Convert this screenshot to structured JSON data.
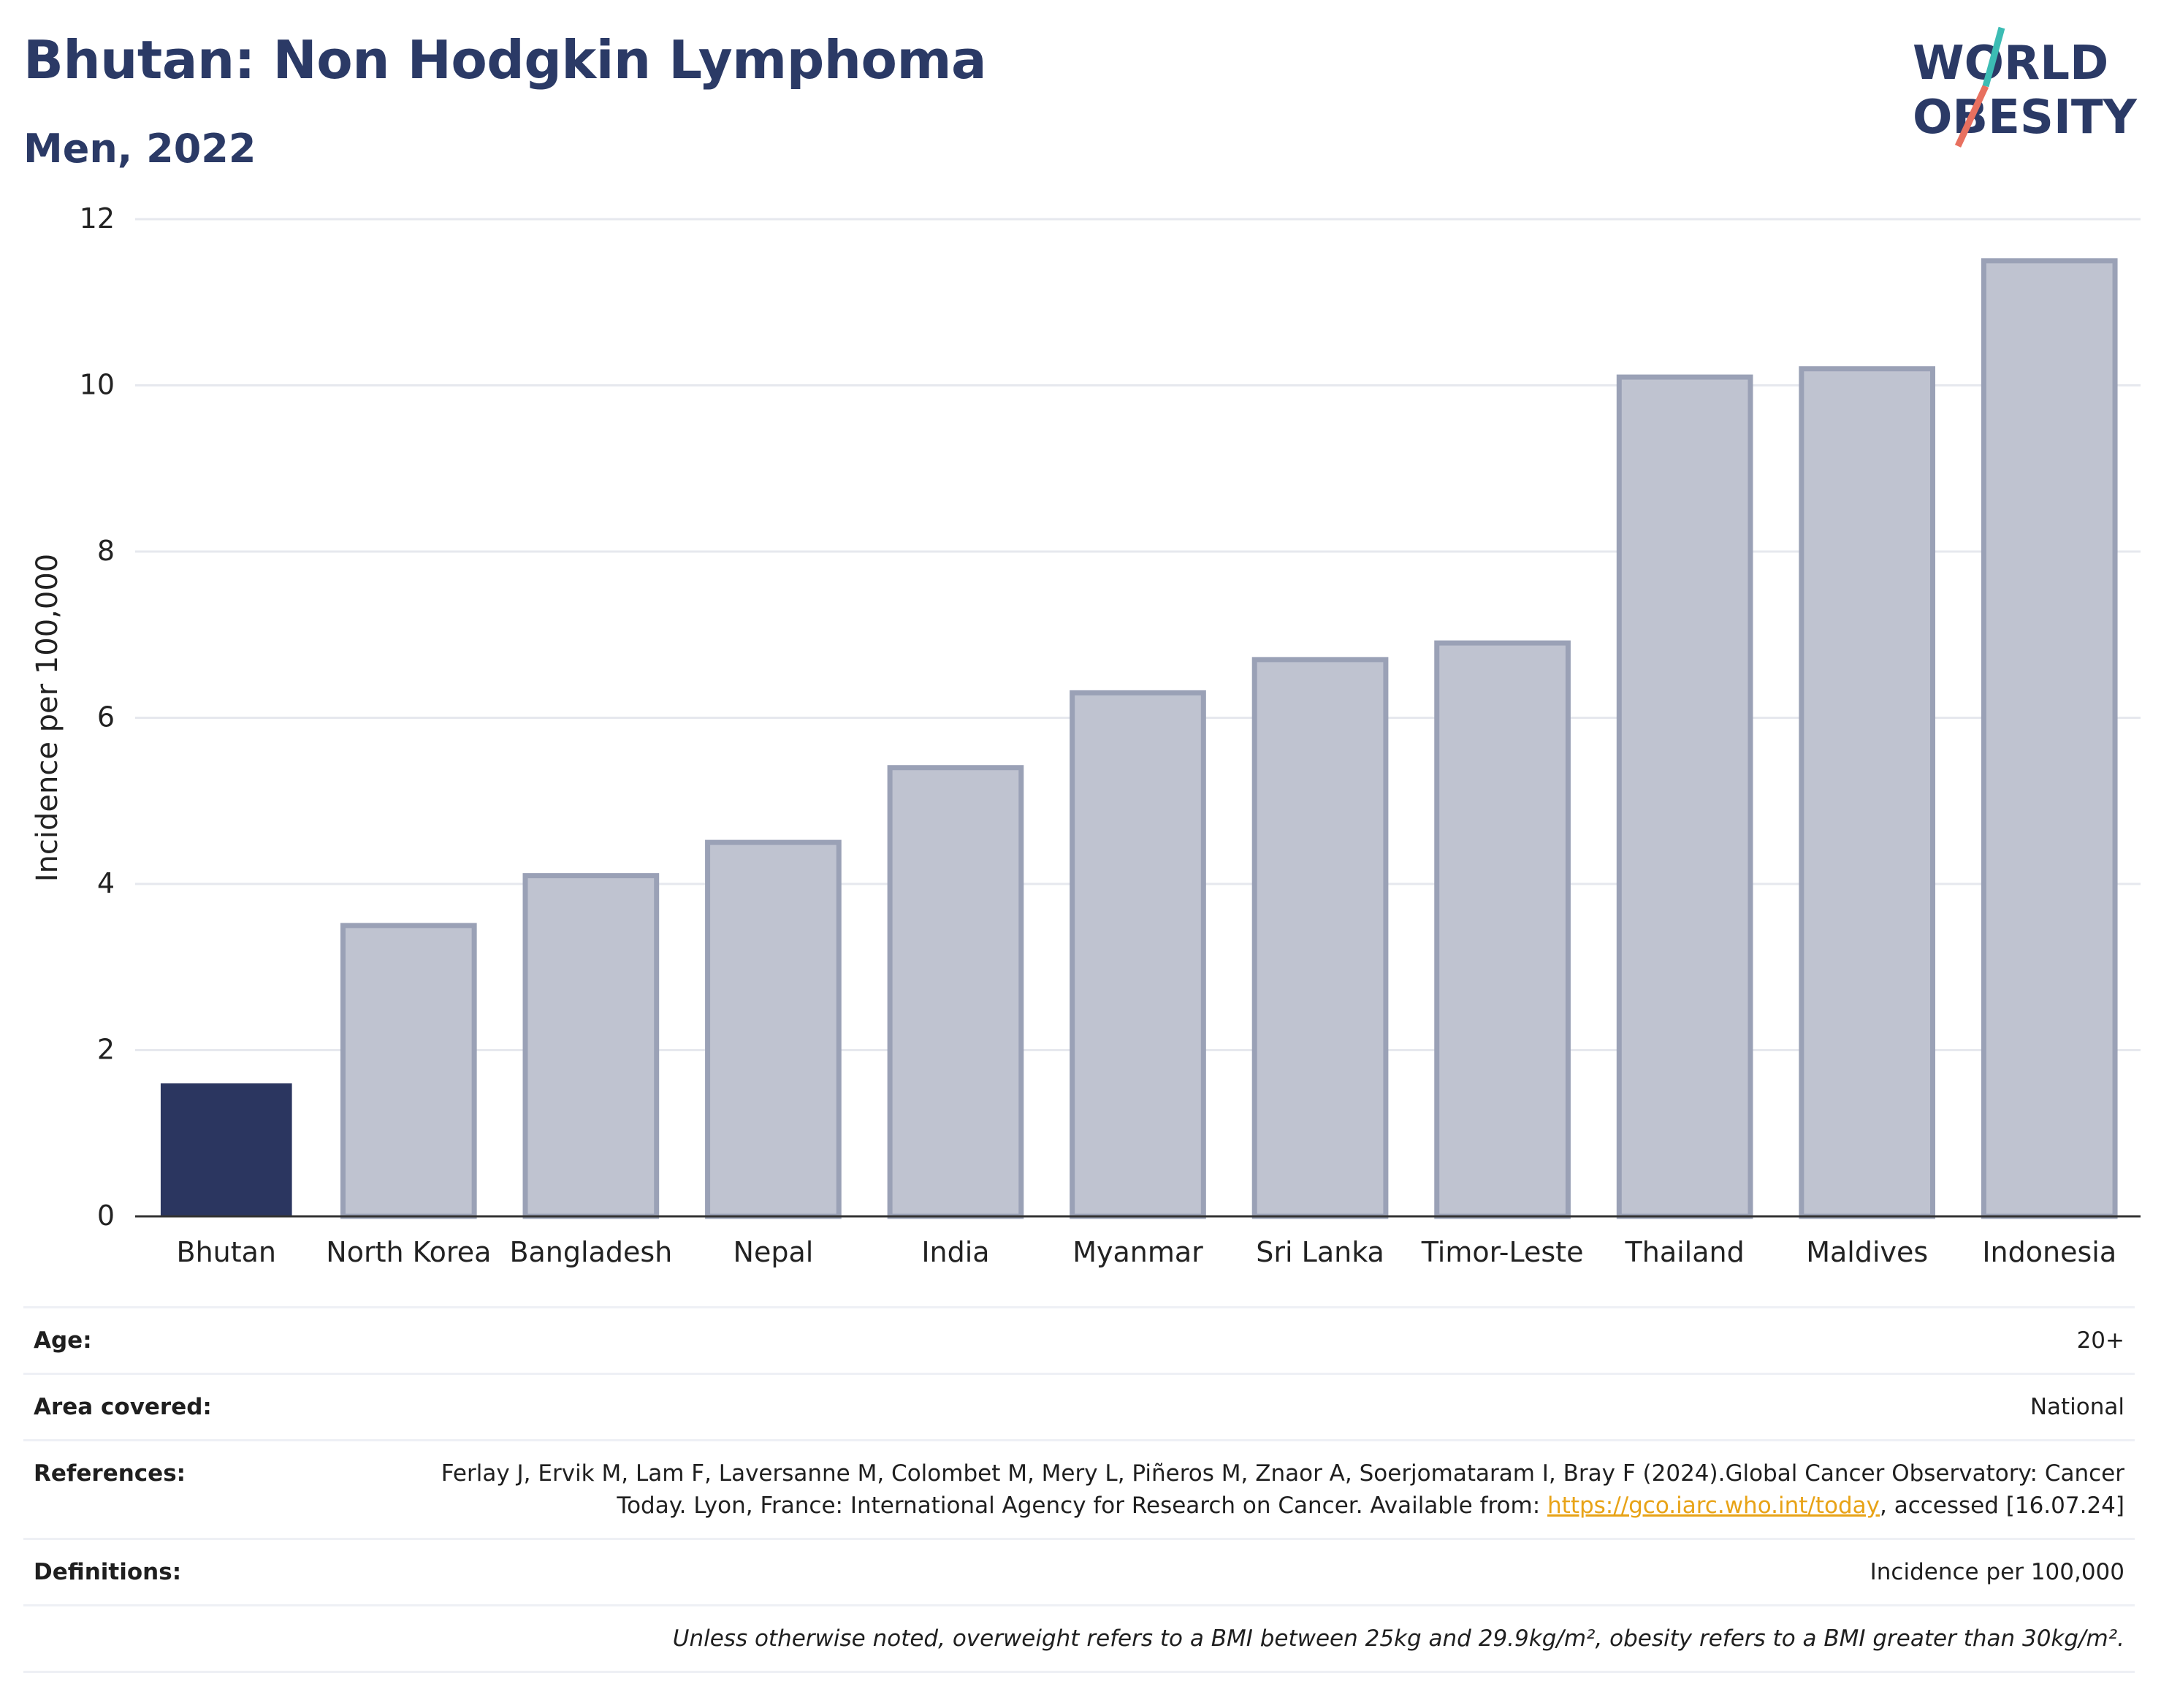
{
  "header": {
    "title": "Bhutan: Non Hodgkin Lymphoma",
    "subtitle": "Men, 2022"
  },
  "logo": {
    "line1": "WORLD",
    "line2": "OBESITY"
  },
  "colors": {
    "highlight": "#2b3660",
    "bar": "#bfc3d0",
    "bar_edge": "#9aa1b6",
    "grid": "#e6e8ee",
    "title": "#2b3a66",
    "link": "#e8a317"
  },
  "chart_data": {
    "type": "bar",
    "categories": [
      "Bhutan",
      "North Korea",
      "Bangladesh",
      "Nepal",
      "India",
      "Myanmar",
      "Sri Lanka",
      "Timor-Leste",
      "Thailand",
      "Maldives",
      "Indonesia"
    ],
    "values": [
      1.6,
      3.5,
      4.1,
      4.5,
      5.4,
      6.3,
      6.7,
      6.9,
      10.1,
      10.2,
      11.5
    ],
    "highlight_index": 0,
    "ylabel": "Incidence per 100,000",
    "ylim": [
      0,
      12
    ],
    "yticks": [
      0,
      2,
      4,
      6,
      8,
      10,
      12
    ],
    "grid": true
  },
  "meta": {
    "age_label": "Age:",
    "age_value": "20+",
    "area_label": "Area covered:",
    "area_value": "National",
    "references_label": "References:",
    "references_text_1": "Ferlay J, Ervik M, Lam F, Laversanne M, Colombet M, Mery L, Piñeros M, Znaor A, Soerjomataram I, Bray F (2024).Global Cancer Observatory: Cancer Today. Lyon, France: International Agency for Research on Cancer. Available from: ",
    "references_link": "https://gco.iarc.who.int/today",
    "references_text_2": ", accessed [16.07.24]",
    "definitions_label": "Definitions:",
    "definitions_value": "Incidence per 100,000",
    "note": "Unless otherwise noted, overweight refers to a BMI between 25kg and 29.9kg/m², obesity refers to a BMI greater than 30kg/m²."
  }
}
